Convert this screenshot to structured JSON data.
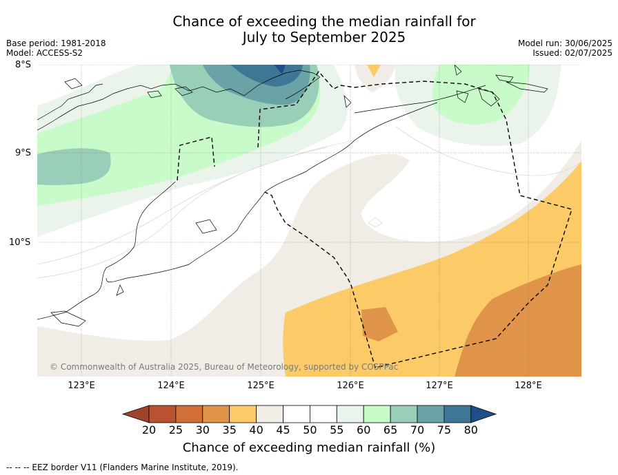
{
  "title_line1": "Chance of exceeding the median rainfall for",
  "title_line2": "July to September 2025",
  "meta_left": {
    "base_period": "Base period: 1981-2018",
    "model": "Model: ACCESS-S2"
  },
  "meta_right": {
    "model_run": "Model run: 30/06/2025",
    "issued": "Issued: 02/07/2025"
  },
  "lat_labels": [
    "8°S",
    "9°S",
    "10°S"
  ],
  "lon_labels": [
    "123°E",
    "124°E",
    "125°E",
    "126°E",
    "127°E",
    "128°E"
  ],
  "copyright": "© Commonwealth of Australia 2025, Bureau of Meteorology, supported by COSPPac",
  "colorbar": {
    "ticks": [
      "20",
      "25",
      "30",
      "35",
      "40",
      "45",
      "50",
      "55",
      "60",
      "65",
      "70",
      "75",
      "80"
    ],
    "colors": [
      "#a0432b",
      "#b85230",
      "#d26f38",
      "#e0944a",
      "#fccb68",
      "#f1ece6",
      "#ffffff",
      "#ffffff",
      "#eaf4ea",
      "#c8fbc9",
      "#99cfb8",
      "#6aa3a6",
      "#3e7796",
      "#1f4f88"
    ],
    "label": "Chance of exceeding median rainfall (%)"
  },
  "footnote": "--  --  -- EEZ border V11 (Flanders Marine Institute, 2019)."
}
